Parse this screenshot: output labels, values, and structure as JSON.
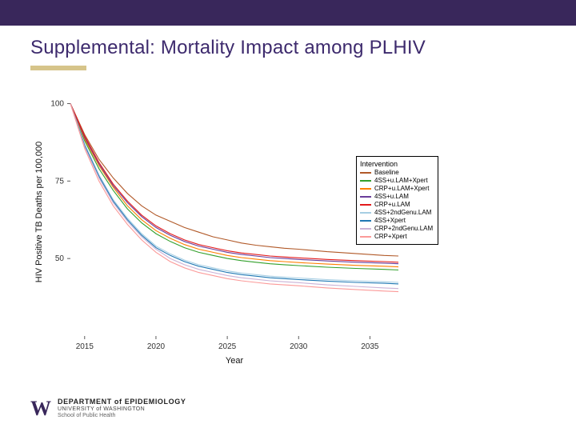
{
  "slide": {
    "top_bar_color": "#39275b",
    "title": "Supplemental: Mortality Impact among PLHIV",
    "title_color": "#3d2a6d",
    "underline_color": "#d6c48a"
  },
  "footer": {
    "logo_letter": "W",
    "dept": "DEPARTMENT of EPIDEMIOLOGY",
    "univ": "UNIVERSITY of WASHINGTON",
    "sph": "School of Public Health"
  },
  "chart": {
    "type": "line",
    "background_color": "#ffffff",
    "plot_bg": "#ffffff",
    "xlabel": "Year",
    "ylabel": "HIV Positive TB Deaths per 100,000",
    "label_fontsize": 11,
    "tick_fontsize": 10,
    "x": {
      "lim": [
        2014,
        2037
      ],
      "ticks": [
        2015,
        2020,
        2025,
        2030,
        2035
      ]
    },
    "y": {
      "lim": [
        25,
        105
      ],
      "ticks": [
        50,
        75,
        100
      ]
    },
    "line_width": 1.1,
    "series_colors": {
      "Baseline": "#b15928",
      "4SS+u.LAM+Xpert": "#33a02c",
      "CRP+u.LAM+Xpert": "#ff7f00",
      "4SS+u.LAM": "#6a3d9a",
      "CRP+u.LAM": "#e31a1c",
      "4SS+2ndGenu.LAM": "#a6cee3",
      "4SS+Xpert": "#1f78b4",
      "CRP+2ndGenu.LAM": "#cab2d6",
      "CRP+Xpert": "#fb9a99"
    },
    "series": [
      {
        "name": "Baseline",
        "data": [
          [
            2014,
            100
          ],
          [
            2015,
            90
          ],
          [
            2016,
            82
          ],
          [
            2017,
            76
          ],
          [
            2018,
            71
          ],
          [
            2019,
            67
          ],
          [
            2020,
            64
          ],
          [
            2021,
            62
          ],
          [
            2022,
            60
          ],
          [
            2023,
            58.5
          ],
          [
            2024,
            57
          ],
          [
            2025,
            56
          ],
          [
            2026,
            55
          ],
          [
            2027,
            54.3
          ],
          [
            2028,
            53.8
          ],
          [
            2029,
            53.3
          ],
          [
            2030,
            53
          ],
          [
            2032,
            52.2
          ],
          [
            2034,
            51.6
          ],
          [
            2036,
            51
          ],
          [
            2037,
            50.8
          ]
        ]
      },
      {
        "name": "4SS+u.LAM+Xpert",
        "data": [
          [
            2014,
            100
          ],
          [
            2015,
            88
          ],
          [
            2016,
            79
          ],
          [
            2017,
            72
          ],
          [
            2018,
            66
          ],
          [
            2019,
            61.5
          ],
          [
            2020,
            58
          ],
          [
            2021,
            55.5
          ],
          [
            2022,
            53.5
          ],
          [
            2023,
            52
          ],
          [
            2024,
            51
          ],
          [
            2025,
            50
          ],
          [
            2026,
            49.3
          ],
          [
            2027,
            48.8
          ],
          [
            2028,
            48.3
          ],
          [
            2029,
            48
          ],
          [
            2030,
            47.7
          ],
          [
            2032,
            47.2
          ],
          [
            2034,
            46.8
          ],
          [
            2036,
            46.5
          ],
          [
            2037,
            46.3
          ]
        ]
      },
      {
        "name": "CRP+u.LAM+Xpert",
        "data": [
          [
            2014,
            100
          ],
          [
            2015,
            88.5
          ],
          [
            2016,
            80
          ],
          [
            2017,
            73
          ],
          [
            2018,
            67
          ],
          [
            2019,
            62.5
          ],
          [
            2020,
            59
          ],
          [
            2021,
            56.5
          ],
          [
            2022,
            54.5
          ],
          [
            2023,
            53
          ],
          [
            2024,
            52
          ],
          [
            2025,
            51
          ],
          [
            2026,
            50.3
          ],
          [
            2027,
            49.8
          ],
          [
            2028,
            49.3
          ],
          [
            2029,
            49
          ],
          [
            2030,
            48.7
          ],
          [
            2032,
            48.2
          ],
          [
            2034,
            47.8
          ],
          [
            2036,
            47.5
          ],
          [
            2037,
            47.3
          ]
        ]
      },
      {
        "name": "4SS+u.LAM",
        "data": [
          [
            2014,
            100
          ],
          [
            2015,
            89
          ],
          [
            2016,
            80.5
          ],
          [
            2017,
            73.5
          ],
          [
            2018,
            68
          ],
          [
            2019,
            63.5
          ],
          [
            2020,
            60
          ],
          [
            2021,
            57.5
          ],
          [
            2022,
            55.5
          ],
          [
            2023,
            54
          ],
          [
            2024,
            53
          ],
          [
            2025,
            52
          ],
          [
            2026,
            51.3
          ],
          [
            2027,
            50.8
          ],
          [
            2028,
            50.3
          ],
          [
            2029,
            50
          ],
          [
            2030,
            49.7
          ],
          [
            2032,
            49.2
          ],
          [
            2034,
            48.8
          ],
          [
            2036,
            48.5
          ],
          [
            2037,
            48.3
          ]
        ]
      },
      {
        "name": "CRP+u.LAM",
        "data": [
          [
            2014,
            100
          ],
          [
            2015,
            89.5
          ],
          [
            2016,
            81
          ],
          [
            2017,
            74
          ],
          [
            2018,
            68.5
          ],
          [
            2019,
            64
          ],
          [
            2020,
            60.5
          ],
          [
            2021,
            58
          ],
          [
            2022,
            56
          ],
          [
            2023,
            54.5
          ],
          [
            2024,
            53.5
          ],
          [
            2025,
            52.5
          ],
          [
            2026,
            51.8
          ],
          [
            2027,
            51.3
          ],
          [
            2028,
            50.8
          ],
          [
            2029,
            50.5
          ],
          [
            2030,
            50.2
          ],
          [
            2032,
            49.7
          ],
          [
            2034,
            49.3
          ],
          [
            2036,
            49
          ],
          [
            2037,
            48.8
          ]
        ]
      },
      {
        "name": "4SS+2ndGenu.LAM",
        "data": [
          [
            2014,
            100
          ],
          [
            2015,
            87
          ],
          [
            2016,
            77
          ],
          [
            2017,
            69
          ],
          [
            2018,
            63
          ],
          [
            2019,
            58
          ],
          [
            2020,
            54
          ],
          [
            2021,
            51.5
          ],
          [
            2022,
            49.5
          ],
          [
            2023,
            48
          ],
          [
            2024,
            47
          ],
          [
            2025,
            46
          ],
          [
            2026,
            45.3
          ],
          [
            2027,
            44.8
          ],
          [
            2028,
            44.3
          ],
          [
            2029,
            44
          ],
          [
            2030,
            43.7
          ],
          [
            2032,
            43.2
          ],
          [
            2034,
            42.8
          ],
          [
            2036,
            42.5
          ],
          [
            2037,
            42.3
          ]
        ]
      },
      {
        "name": "4SS+Xpert",
        "data": [
          [
            2014,
            100
          ],
          [
            2015,
            86.5
          ],
          [
            2016,
            76.5
          ],
          [
            2017,
            68.5
          ],
          [
            2018,
            62.5
          ],
          [
            2019,
            57.5
          ],
          [
            2020,
            53.5
          ],
          [
            2021,
            51
          ],
          [
            2022,
            49
          ],
          [
            2023,
            47.5
          ],
          [
            2024,
            46.5
          ],
          [
            2025,
            45.5
          ],
          [
            2026,
            44.8
          ],
          [
            2027,
            44.3
          ],
          [
            2028,
            43.8
          ],
          [
            2029,
            43.5
          ],
          [
            2030,
            43.2
          ],
          [
            2032,
            42.7
          ],
          [
            2034,
            42.3
          ],
          [
            2036,
            42
          ],
          [
            2037,
            41.8
          ]
        ]
      },
      {
        "name": "CRP+2ndGenu.LAM",
        "data": [
          [
            2014,
            100
          ],
          [
            2015,
            86
          ],
          [
            2016,
            76
          ],
          [
            2017,
            68
          ],
          [
            2018,
            62
          ],
          [
            2019,
            57
          ],
          [
            2020,
            53
          ],
          [
            2021,
            50
          ],
          [
            2022,
            48
          ],
          [
            2023,
            46.5
          ],
          [
            2024,
            45.5
          ],
          [
            2025,
            44.5
          ],
          [
            2026,
            43.8
          ],
          [
            2027,
            43.3
          ],
          [
            2028,
            42.8
          ],
          [
            2029,
            42.5
          ],
          [
            2030,
            42.2
          ],
          [
            2032,
            41.5
          ],
          [
            2034,
            41
          ],
          [
            2036,
            40.5
          ],
          [
            2037,
            40.3
          ]
        ]
      },
      {
        "name": "CRP+Xpert",
        "data": [
          [
            2014,
            100
          ],
          [
            2015,
            85.5
          ],
          [
            2016,
            75
          ],
          [
            2017,
            67
          ],
          [
            2018,
            61
          ],
          [
            2019,
            56
          ],
          [
            2020,
            52
          ],
          [
            2021,
            49
          ],
          [
            2022,
            47
          ],
          [
            2023,
            45.5
          ],
          [
            2024,
            44.5
          ],
          [
            2025,
            43.5
          ],
          [
            2026,
            42.8
          ],
          [
            2027,
            42.3
          ],
          [
            2028,
            41.8
          ],
          [
            2029,
            41.5
          ],
          [
            2030,
            41.2
          ],
          [
            2032,
            40.5
          ],
          [
            2034,
            40
          ],
          [
            2036,
            39.5
          ],
          [
            2037,
            39.3
          ]
        ]
      }
    ],
    "legend": {
      "title": "Intervention",
      "items": [
        "Baseline",
        "4SS+u.LAM+Xpert",
        "CRP+u.LAM+Xpert",
        "4SS+u.LAM",
        "CRP+u.LAM",
        "4SS+2ndGenu.LAM",
        "4SS+Xpert",
        "CRP+2ndGenu.LAM",
        "CRP+Xpert"
      ]
    }
  }
}
